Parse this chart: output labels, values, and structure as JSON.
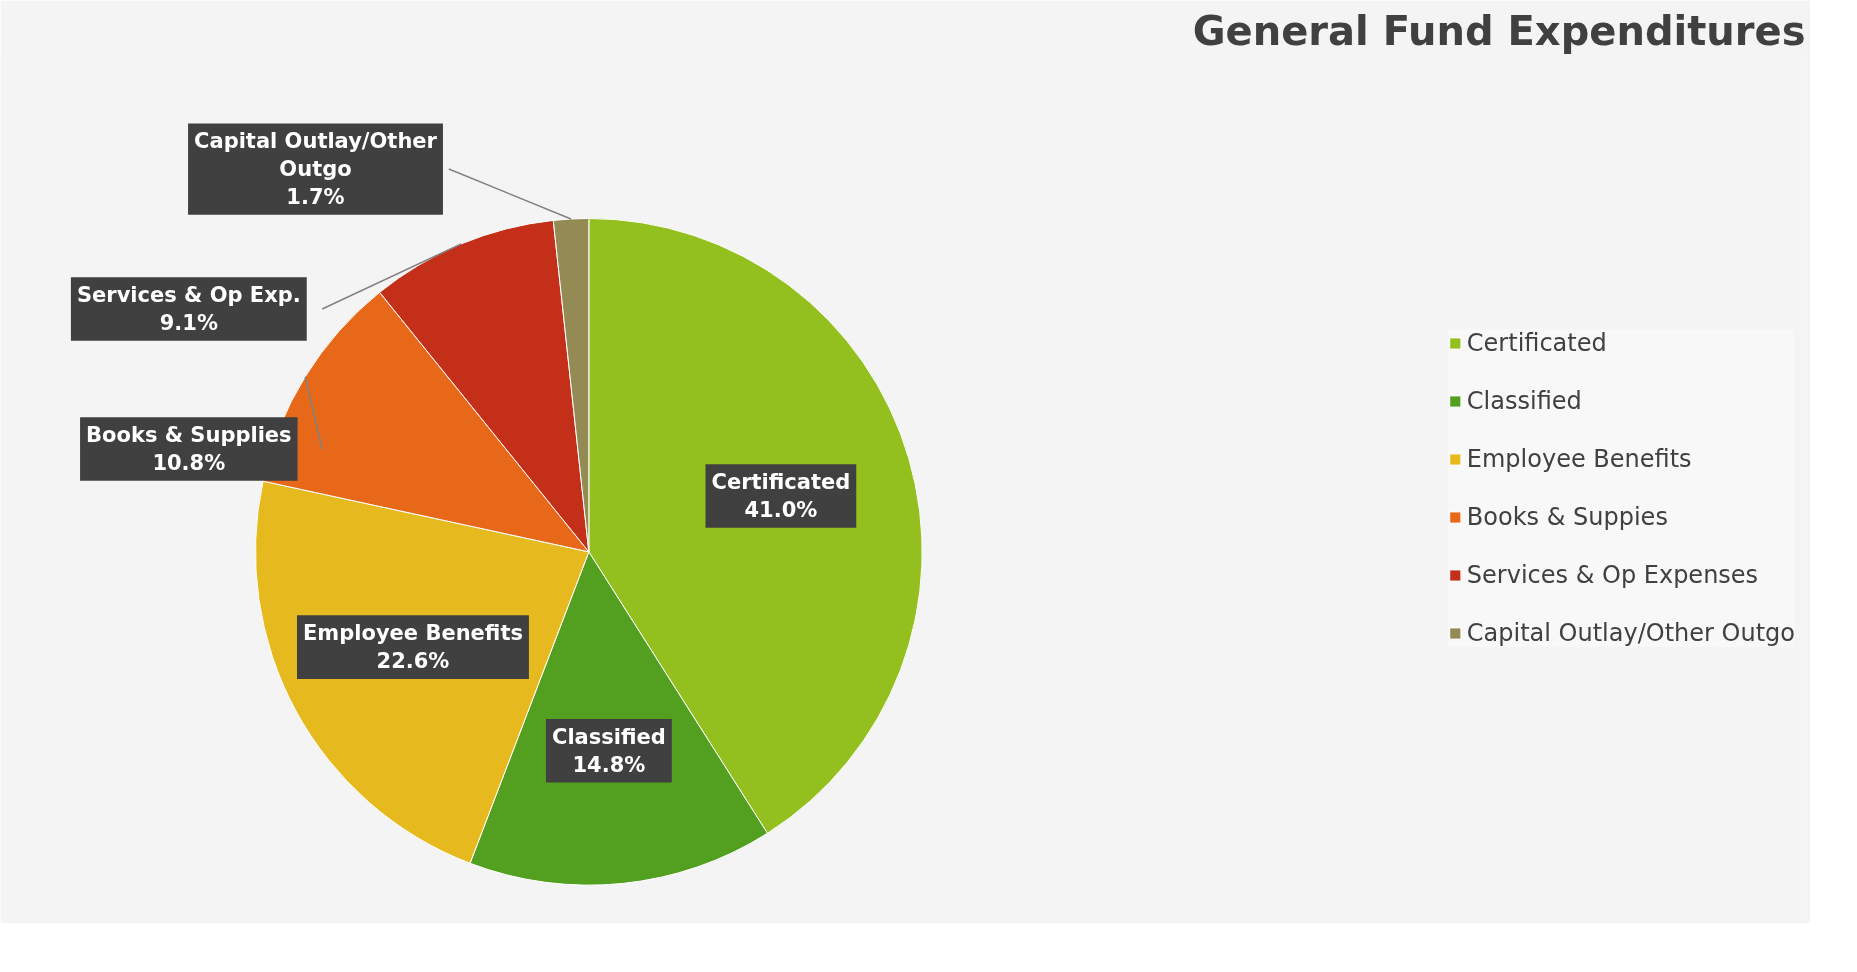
{
  "chart_data": {
    "type": "pie",
    "title": "General Fund Expenditures",
    "categories": [
      "Certificated",
      "Classified",
      "Employee Benefits",
      "Books & Suppies",
      "Services & Op Expenses",
      "Capital Outlay/Other Outgo"
    ],
    "values": [
      41.0,
      14.8,
      22.6,
      10.8,
      9.1,
      1.7
    ],
    "colors": [
      "#93c01f",
      "#53a021",
      "#e6b91e",
      "#e8681a",
      "#c42f1a",
      "#948a54"
    ],
    "value_labels": [
      "Certificated\n41.0%",
      "Classified\n14.8%",
      "Employee Benefits\n22.6%",
      "Books & Supplies\n10.8%",
      "Services & Op Exp.\n9.1%",
      "Capital Outlay/Other\nOutgo\n1.7%"
    ],
    "legend": "right"
  }
}
